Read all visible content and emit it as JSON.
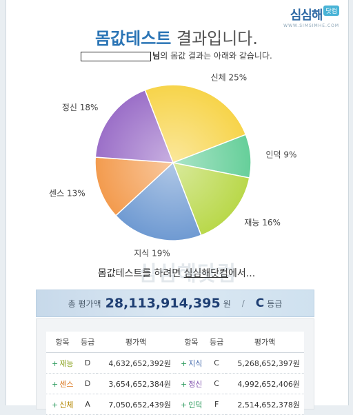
{
  "logo": {
    "main": "심심해",
    "badge": "닷컴",
    "sub": "WWW.SIMSIMHE.COM"
  },
  "title": {
    "accent": "몸값테스트",
    "rest": " 결과입니다."
  },
  "subtitle": {
    "suffix": "님",
    "rest": "의 몸값 결과는 아래와 같습니다."
  },
  "chart_data": {
    "type": "pie",
    "slices": [
      {
        "label": "신체 25%",
        "value": 25,
        "color": "#f7d44a"
      },
      {
        "label": "인덕 9%",
        "value": 9,
        "color": "#66cf9a"
      },
      {
        "label": "재능 16%",
        "value": 16,
        "color": "#b9d84a"
      },
      {
        "label": "지식 19%",
        "value": 19,
        "color": "#6f9ad2"
      },
      {
        "label": "센스 13%",
        "value": 13,
        "color": "#f39b4e"
      },
      {
        "label": "정신 18%",
        "value": 18,
        "color": "#9b6fc8"
      }
    ]
  },
  "promo": {
    "pre": "몸값테스트를 하려면 ",
    "site": "심심해닷컴",
    "post": "에서...",
    "watermark": "심심해닷컴"
  },
  "total": {
    "label": "총 평가액",
    "amount": "28,113,914,395",
    "unit": "원",
    "sep": "/",
    "grade": "C",
    "grade_label": "등급"
  },
  "table": {
    "headers": [
      "항목",
      "등급",
      "평가액",
      "항목",
      "등급",
      "평가액"
    ],
    "rows": [
      {
        "left": {
          "name": "재능",
          "color": "#8aa21e",
          "grade": "D",
          "value": "4,632,652,392원"
        },
        "right": {
          "name": "지식",
          "color": "#3b63a8",
          "grade": "C",
          "value": "5,268,652,397원"
        }
      },
      {
        "left": {
          "name": "센스",
          "color": "#d9741a",
          "grade": "D",
          "value": "3,654,652,384원"
        },
        "right": {
          "name": "정신",
          "color": "#7a4aa8",
          "grade": "C",
          "value": "4,992,652,406원"
        }
      },
      {
        "left": {
          "name": "신체",
          "color": "#b58a0a",
          "grade": "A",
          "value": "7,050,652,439원"
        },
        "right": {
          "name": "인덕",
          "color": "#2b9a5c",
          "grade": "F",
          "value": "2,514,652,378원"
        }
      }
    ]
  }
}
